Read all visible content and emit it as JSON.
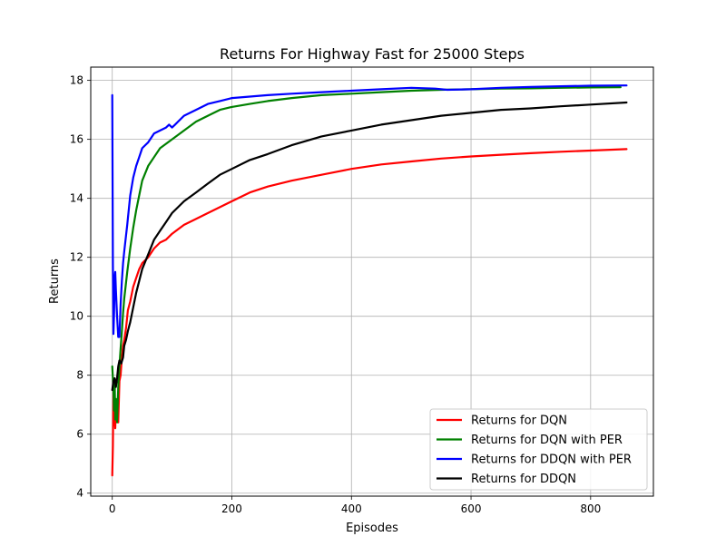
{
  "chart_data": {
    "type": "line",
    "title": "Returns For Highway Fast for 25000 Steps",
    "xlabel": "Episodes",
    "ylabel": "Returns",
    "xlim": [
      -36,
      905
    ],
    "ylim": [
      3.9,
      18.45
    ],
    "xticks": [
      0,
      200,
      400,
      600,
      800
    ],
    "yticks": [
      4,
      6,
      8,
      10,
      12,
      14,
      16,
      18
    ],
    "grid": true,
    "legend_position": "lower-right",
    "series": [
      {
        "name": "Returns for DQN",
        "color": "#ff0000",
        "x": [
          0,
          1,
          2,
          3,
          4,
          5,
          6,
          8,
          10,
          12,
          14,
          16,
          18,
          20,
          23,
          26,
          30,
          35,
          40,
          45,
          50,
          55,
          60,
          70,
          80,
          90,
          100,
          120,
          140,
          160,
          180,
          200,
          230,
          260,
          300,
          350,
          400,
          450,
          500,
          550,
          600,
          650,
          700,
          750,
          800,
          860
        ],
        "y": [
          4.6,
          5.6,
          7.5,
          6.3,
          6.9,
          6.2,
          7.1,
          7.1,
          6.4,
          7.8,
          8.0,
          8.6,
          9.0,
          9.2,
          9.6,
          10.2,
          10.5,
          11.0,
          11.3,
          11.6,
          11.8,
          11.9,
          12.0,
          12.3,
          12.5,
          12.6,
          12.8,
          13.1,
          13.3,
          13.5,
          13.7,
          13.9,
          14.2,
          14.4,
          14.6,
          14.8,
          15.0,
          15.15,
          15.25,
          15.35,
          15.42,
          15.48,
          15.53,
          15.58,
          15.62,
          15.67
        ]
      },
      {
        "name": "Returns for DQN with PER",
        "color": "#008000",
        "x": [
          0,
          1,
          2,
          3,
          4,
          5,
          6,
          8,
          10,
          12,
          14,
          16,
          18,
          20,
          25,
          30,
          35,
          40,
          45,
          50,
          60,
          70,
          80,
          100,
          120,
          140,
          160,
          180,
          200,
          230,
          260,
          300,
          350,
          400,
          450,
          500,
          550,
          600,
          650,
          700,
          750,
          800,
          850
        ],
        "y": [
          8.3,
          7.9,
          7.5,
          6.8,
          7.8,
          6.5,
          7.2,
          6.4,
          7.6,
          8.3,
          8.9,
          9.5,
          10.1,
          10.6,
          11.5,
          12.3,
          13.0,
          13.6,
          14.1,
          14.6,
          15.1,
          15.4,
          15.7,
          16.0,
          16.3,
          16.6,
          16.8,
          17.0,
          17.1,
          17.2,
          17.3,
          17.4,
          17.5,
          17.55,
          17.6,
          17.65,
          17.68,
          17.7,
          17.72,
          17.73,
          17.75,
          17.76,
          17.77
        ]
      },
      {
        "name": "Returns for DDQN with PER",
        "color": "#0000ff",
        "x": [
          0,
          1,
          2,
          3,
          4,
          5,
          6,
          8,
          10,
          12,
          14,
          16,
          18,
          20,
          25,
          30,
          35,
          40,
          45,
          50,
          55,
          60,
          70,
          80,
          90,
          95,
          100,
          105,
          110,
          120,
          140,
          160,
          180,
          200,
          230,
          260,
          300,
          350,
          400,
          450,
          500,
          540,
          560,
          600,
          650,
          700,
          750,
          800,
          860
        ],
        "y": [
          17.5,
          11.8,
          9.4,
          10.1,
          11.3,
          11.5,
          10.9,
          10.0,
          9.3,
          9.3,
          10.4,
          11.2,
          11.8,
          12.2,
          13.1,
          14.1,
          14.7,
          15.1,
          15.4,
          15.7,
          15.8,
          15.9,
          16.2,
          16.3,
          16.4,
          16.5,
          16.4,
          16.5,
          16.6,
          16.8,
          17.0,
          17.2,
          17.3,
          17.4,
          17.45,
          17.5,
          17.55,
          17.6,
          17.65,
          17.7,
          17.75,
          17.72,
          17.68,
          17.7,
          17.75,
          17.78,
          17.8,
          17.82,
          17.83
        ]
      },
      {
        "name": "Returns for DDQN",
        "color": "#000000",
        "x": [
          0,
          2,
          4,
          6,
          8,
          10,
          12,
          15,
          18,
          20,
          23,
          26,
          30,
          35,
          40,
          45,
          50,
          60,
          70,
          80,
          90,
          100,
          120,
          140,
          160,
          180,
          200,
          230,
          260,
          300,
          350,
          400,
          450,
          500,
          550,
          600,
          650,
          700,
          750,
          800,
          860
        ],
        "y": [
          7.5,
          7.8,
          7.9,
          7.6,
          7.9,
          8.3,
          8.5,
          8.4,
          8.6,
          9.0,
          9.2,
          9.5,
          9.8,
          10.3,
          10.8,
          11.2,
          11.6,
          12.1,
          12.6,
          12.9,
          13.2,
          13.5,
          13.9,
          14.2,
          14.5,
          14.8,
          15.0,
          15.3,
          15.5,
          15.8,
          16.1,
          16.3,
          16.5,
          16.65,
          16.8,
          16.9,
          17.0,
          17.05,
          17.12,
          17.18,
          17.25
        ]
      }
    ]
  }
}
